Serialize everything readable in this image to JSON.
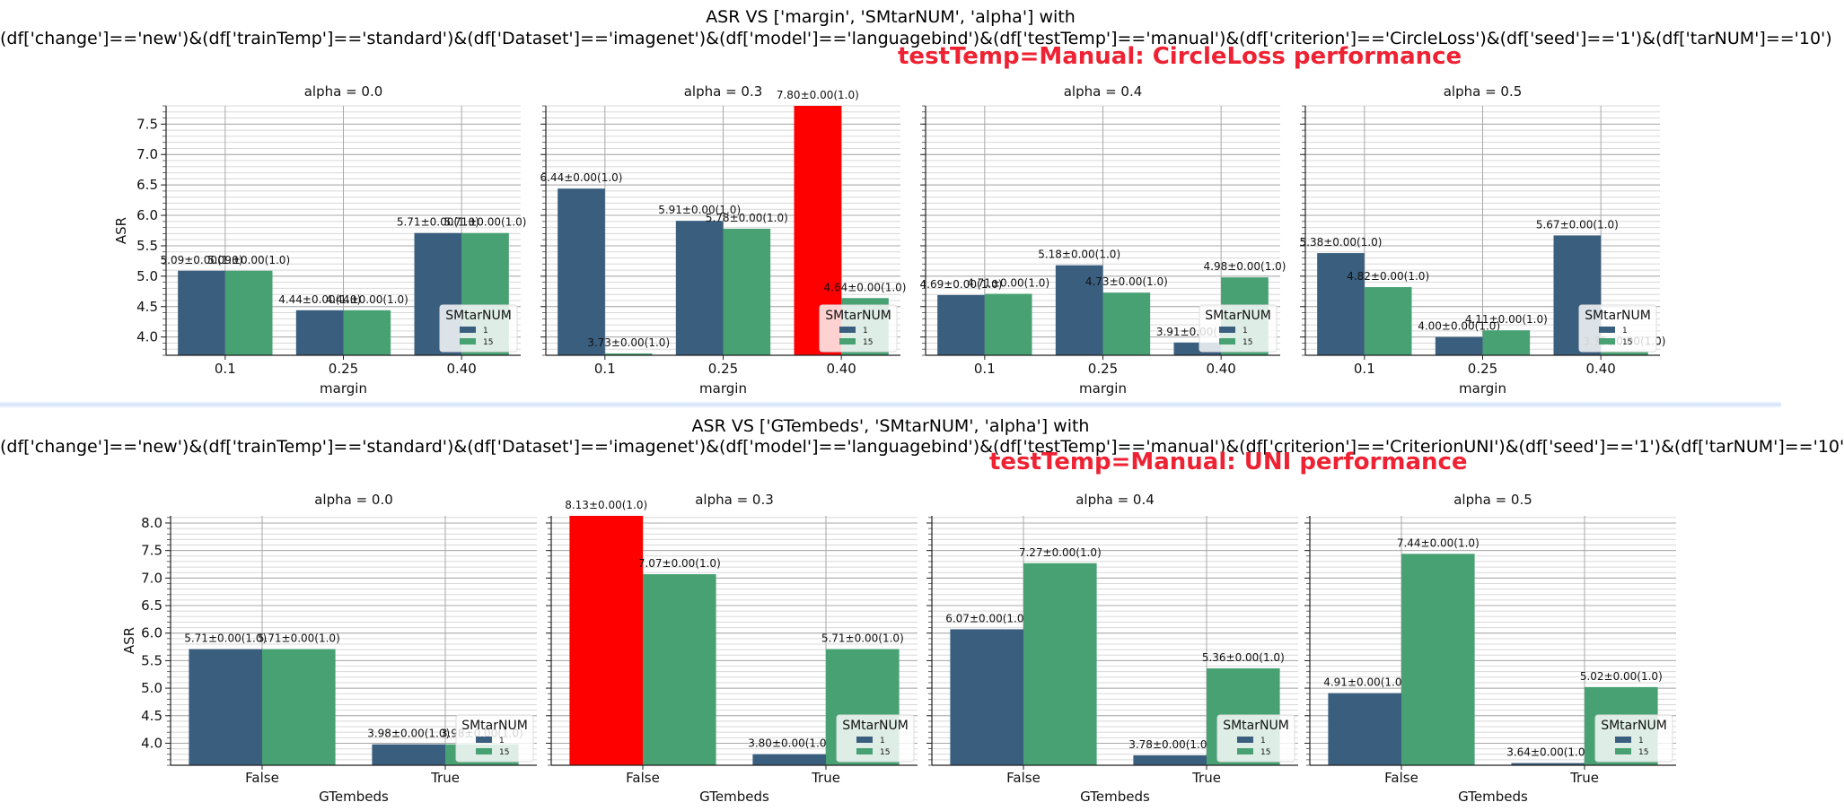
{
  "colors": {
    "s1": "#3a5e7e",
    "s15": "#47a173",
    "highlight": "#ff0000"
  },
  "top": {
    "title_line1": "ASR VS ['margin', 'SMtarNUM', 'alpha'] with",
    "title_line2": "(df['change']=='new')&(df['trainTemp']=='standard')&(df['Dataset']=='imagenet')&(df['model']=='languagebind')&(df['testTemp']=='manual')&(df['criterion']=='CircleLoss')&(df['seed']=='1')&(df['tarNUM']=='10')",
    "red_note": "testTemp=Manual:   CircleLoss performance"
  },
  "bottom": {
    "title_line1": "ASR VS ['GTembeds', 'SMtarNUM', 'alpha'] with",
    "title_line2": "(df['change']=='new')&(df['trainTemp']=='standard')&(df['Dataset']=='imagenet')&(df['model']=='languagebind')&(df['testTemp']=='manual')&(df['criterion']=='CriterionUNI')&(df['seed']=='1')&(df['tarNUM']=='10'",
    "red_note": "testTemp=Manual:   UNI performance"
  },
  "chart_data": [
    {
      "type": "bar",
      "xlabel": "margin",
      "ylabel": "ASR",
      "ylim": [
        3.7,
        7.8
      ],
      "yticks": [
        4.0,
        4.5,
        5.0,
        5.5,
        6.0,
        6.5,
        7.0,
        7.5
      ],
      "legend_title": "SMtarNUM",
      "legend_placement": "bottom-right",
      "grid": true,
      "categories": [
        "0.1",
        "0.25",
        "0.40"
      ],
      "series_names": [
        "1",
        "15"
      ],
      "facets": [
        {
          "title": "alpha = 0.0",
          "values": {
            "1": [
              5.09,
              4.44,
              5.71
            ],
            "15": [
              5.09,
              4.44,
              5.71
            ]
          },
          "labels": {
            "1": [
              "5.09±0.00(1.0)",
              "4.44±0.00(1.0)",
              "5.71±0.00(1.0)"
            ],
            "15": [
              "5.09±0.00(1.0)",
              "4.44±0.00(1.0)",
              "5.71±0.00(1.0)"
            ]
          },
          "highlight": null
        },
        {
          "title": "alpha = 0.3",
          "values": {
            "1": [
              6.44,
              5.91,
              7.8
            ],
            "15": [
              3.73,
              5.78,
              4.64
            ]
          },
          "labels": {
            "1": [
              "6.44±0.00(1.0)",
              "5.91±0.00(1.0)",
              "7.80±0.00(1.0)"
            ],
            "15": [
              "3.73±0.00(1.0)",
              "5.78±0.00(1.0)",
              "4.64±0.00(1.0)"
            ]
          },
          "highlight": [
            "1",
            2
          ]
        },
        {
          "title": "alpha = 0.4",
          "values": {
            "1": [
              4.69,
              5.18,
              3.91
            ],
            "15": [
              4.71,
              4.73,
              4.98
            ]
          },
          "labels": {
            "1": [
              "4.69±0.00(1.0)",
              "5.18±0.00(1.0)",
              "3.91±0.00(1.0)"
            ],
            "15": [
              "4.71±0.00(1.0)",
              "4.73±0.00(1.0)",
              "4.98±0.00(1.0)"
            ]
          },
          "highlight": null
        },
        {
          "title": "alpha = 0.5",
          "values": {
            "1": [
              5.38,
              4.0,
              5.67
            ],
            "15": [
              4.82,
              4.11,
              3.75
            ]
          },
          "labels": {
            "1": [
              "5.38±0.00(1.0)",
              "4.00±0.00(1.0)",
              "5.67±0.00(1.0)"
            ],
            "15": [
              "4.82±0.00(1.0)",
              "4.11±0.00(1.0)",
              "3.75±0.00(1.0)"
            ]
          },
          "highlight": null
        }
      ]
    },
    {
      "type": "bar",
      "xlabel": "GTembeds",
      "ylabel": "ASR",
      "ylim": [
        3.6,
        8.13
      ],
      "yticks": [
        4.0,
        4.5,
        5.0,
        5.5,
        6.0,
        6.5,
        7.0,
        7.5,
        8.0
      ],
      "legend_title": "SMtarNUM",
      "legend_placement": "bottom-right",
      "grid": true,
      "categories": [
        "False",
        "True"
      ],
      "series_names": [
        "1",
        "15"
      ],
      "facets": [
        {
          "title": "alpha = 0.0",
          "values": {
            "1": [
              5.71,
              3.98
            ],
            "15": [
              5.71,
              3.98
            ]
          },
          "labels": {
            "1": [
              "5.71±0.00(1.0)",
              "3.98±0.00(1.0)"
            ],
            "15": [
              "5.71±0.00(1.0)",
              "3.98±0.00(1.0)"
            ]
          },
          "highlight": null
        },
        {
          "title": "alpha = 0.3",
          "values": {
            "1": [
              8.13,
              3.8
            ],
            "15": [
              7.07,
              5.71
            ]
          },
          "labels": {
            "1": [
              "8.13±0.00(1.0)",
              "3.80±0.00(1.0)"
            ],
            "15": [
              "7.07±0.00(1.0)",
              "5.71±0.00(1.0)"
            ]
          },
          "highlight": [
            "1",
            0
          ]
        },
        {
          "title": "alpha = 0.4",
          "values": {
            "1": [
              6.07,
              3.78
            ],
            "15": [
              7.27,
              5.36
            ]
          },
          "labels": {
            "1": [
              "6.07±0.00(1.0)",
              "3.78±0.00(1.0)"
            ],
            "15": [
              "7.27±0.00(1.0)",
              "5.36±0.00(1.0)"
            ]
          },
          "highlight": null
        },
        {
          "title": "alpha = 0.5",
          "values": {
            "1": [
              4.91,
              3.64
            ],
            "15": [
              7.44,
              5.02
            ]
          },
          "labels": {
            "1": [
              "4.91±0.00(1.0)",
              "3.64±0.00(1.0)"
            ],
            "15": [
              "7.44±0.00(1.0)",
              "5.02±0.00(1.0)"
            ]
          },
          "highlight": null
        }
      ]
    }
  ]
}
